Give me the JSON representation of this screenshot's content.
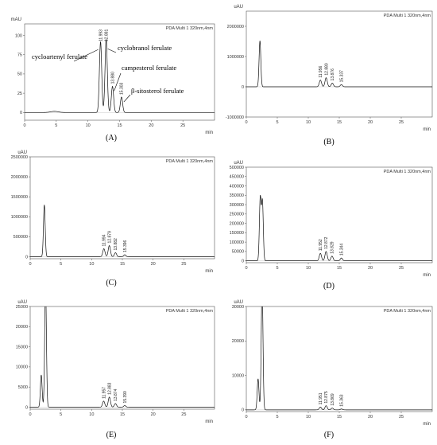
{
  "chart_data": [
    {
      "type": "line",
      "panel": "(A)",
      "y_unit": "mAU",
      "x_unit": "min",
      "detector": "PDA Multi 1 320nm,4nm",
      "xlim": [
        0,
        30
      ],
      "ylim": [
        -10,
        115
      ],
      "x_ticks": [
        "0",
        "5",
        "10",
        "15",
        "20",
        "25"
      ],
      "y_ticks": [
        "0",
        "25",
        "50",
        "75",
        "100"
      ],
      "peaks": [
        {
          "rt": 11.993,
          "height": 92,
          "label": "11.993"
        },
        {
          "rt": 12.881,
          "height": 95,
          "label": "12.881"
        },
        {
          "rt": 13.88,
          "height": 34,
          "label": "13.880"
        },
        {
          "rt": 15.303,
          "height": 20,
          "label": "15.303"
        }
      ],
      "baseline_bumps": [
        {
          "rt": 4.7,
          "height": 1.5
        }
      ],
      "annotations": [
        "cycloartenyl ferulate",
        "cyclobranol ferulate",
        "campesterol ferulate",
        "β-sitosterol ferulate"
      ]
    },
    {
      "type": "line",
      "panel": "(B)",
      "y_unit": "uAU",
      "x_unit": "min",
      "detector": "PDA Multi 1 320nm,4nm",
      "xlim": [
        0,
        30
      ],
      "ylim": [
        -1000000,
        2500000
      ],
      "x_ticks": [
        "0",
        "5",
        "10",
        "15",
        "20",
        "25"
      ],
      "y_ticks": [
        "-1000000",
        "0",
        "1000000",
        "2000000"
      ],
      "peaks": [
        {
          "rt": 2.2,
          "height": 1520000,
          "label": ""
        },
        {
          "rt": 11.956,
          "height": 220000,
          "label": "11.956"
        },
        {
          "rt": 12.88,
          "height": 300000,
          "label": "12.880"
        },
        {
          "rt": 13.876,
          "height": 120000,
          "label": "13.876"
        },
        {
          "rt": 15.337,
          "height": 70000,
          "label": "15.337"
        }
      ]
    },
    {
      "type": "line",
      "panel": "(C)",
      "y_unit": "uAU",
      "x_unit": "min",
      "detector": "PDA Multi 1 320nm,4nm",
      "xlim": [
        0,
        30
      ],
      "ylim": [
        -50000,
        2500000
      ],
      "x_ticks": [
        "0",
        "5",
        "10",
        "15",
        "20",
        "25"
      ],
      "y_ticks": [
        "0",
        "500000",
        "1000000",
        "1500000",
        "2000000",
        "2500000"
      ],
      "peaks": [
        {
          "rt": 2.3,
          "height": 1300000,
          "label": ""
        },
        {
          "rt": 11.994,
          "height": 200000,
          "label": "11.994"
        },
        {
          "rt": 12.879,
          "height": 280000,
          "label": "12.879"
        },
        {
          "rt": 13.882,
          "height": 100000,
          "label": "13.882"
        },
        {
          "rt": 15.396,
          "height": 50000,
          "label": "15.396"
        }
      ]
    },
    {
      "type": "line",
      "panel": "(D)",
      "y_unit": "uAU",
      "x_unit": "min",
      "detector": "PDA Multi 1 320nm,4nm",
      "xlim": [
        0,
        30
      ],
      "ylim": [
        -10000,
        500000
      ],
      "x_ticks": [
        "0",
        "5",
        "10",
        "15",
        "20",
        "25"
      ],
      "y_ticks": [
        "0",
        "50000",
        "100000",
        "150000",
        "200000",
        "250000",
        "300000",
        "350000",
        "400000",
        "450000",
        "500000"
      ],
      "peaks": [
        {
          "rt": 2.25,
          "height": 335000,
          "label": ""
        },
        {
          "rt": 2.6,
          "height": 315000,
          "label": ""
        },
        {
          "rt": 11.952,
          "height": 40000,
          "label": "11.952"
        },
        {
          "rt": 12.872,
          "height": 50000,
          "label": "12.872"
        },
        {
          "rt": 13.829,
          "height": 25000,
          "label": "13.829"
        },
        {
          "rt": 15.344,
          "height": 15000,
          "label": "15.344"
        }
      ]
    },
    {
      "type": "line",
      "panel": "(E)",
      "y_unit": "uAU",
      "x_unit": "min",
      "detector": "PDA Multi 1 320nm,4nm",
      "xlim": [
        0,
        30
      ],
      "ylim": [
        -500,
        25000
      ],
      "x_ticks": [
        "0",
        "5",
        "10",
        "15",
        "20",
        "25"
      ],
      "y_ticks": [
        "0",
        "5000",
        "10000",
        "15000",
        "20000",
        "25000"
      ],
      "peaks": [
        {
          "rt": 1.8,
          "height": 8000,
          "label": ""
        },
        {
          "rt": 2.5,
          "height": 30000,
          "label": ""
        },
        {
          "rt": 11.957,
          "height": 1500,
          "label": "11.957"
        },
        {
          "rt": 12.883,
          "height": 2500,
          "label": "12.883"
        },
        {
          "rt": 13.874,
          "height": 900,
          "label": "13.874"
        },
        {
          "rt": 15.39,
          "height": 400,
          "label": "15.390"
        }
      ]
    },
    {
      "type": "line",
      "panel": "(F)",
      "y_unit": "uAU",
      "x_unit": "min",
      "detector": "PDA Multi 1 320nm,4nm",
      "xlim": [
        0,
        30
      ],
      "ylim": [
        -500,
        30000
      ],
      "x_ticks": [
        "0",
        "5",
        "10",
        "15",
        "20",
        "25"
      ],
      "y_ticks": [
        "0",
        "10000",
        "20000",
        "30000"
      ],
      "peaks": [
        {
          "rt": 1.9,
          "height": 9000,
          "label": ""
        },
        {
          "rt": 2.55,
          "height": 36000,
          "label": ""
        },
        {
          "rt": 11.951,
          "height": 800,
          "label": "11.951"
        },
        {
          "rt": 12.875,
          "height": 1200,
          "label": "12.875"
        },
        {
          "rt": 13.869,
          "height": 500,
          "label": "13.869"
        },
        {
          "rt": 15.363,
          "height": 250,
          "label": "15.363"
        }
      ]
    }
  ]
}
